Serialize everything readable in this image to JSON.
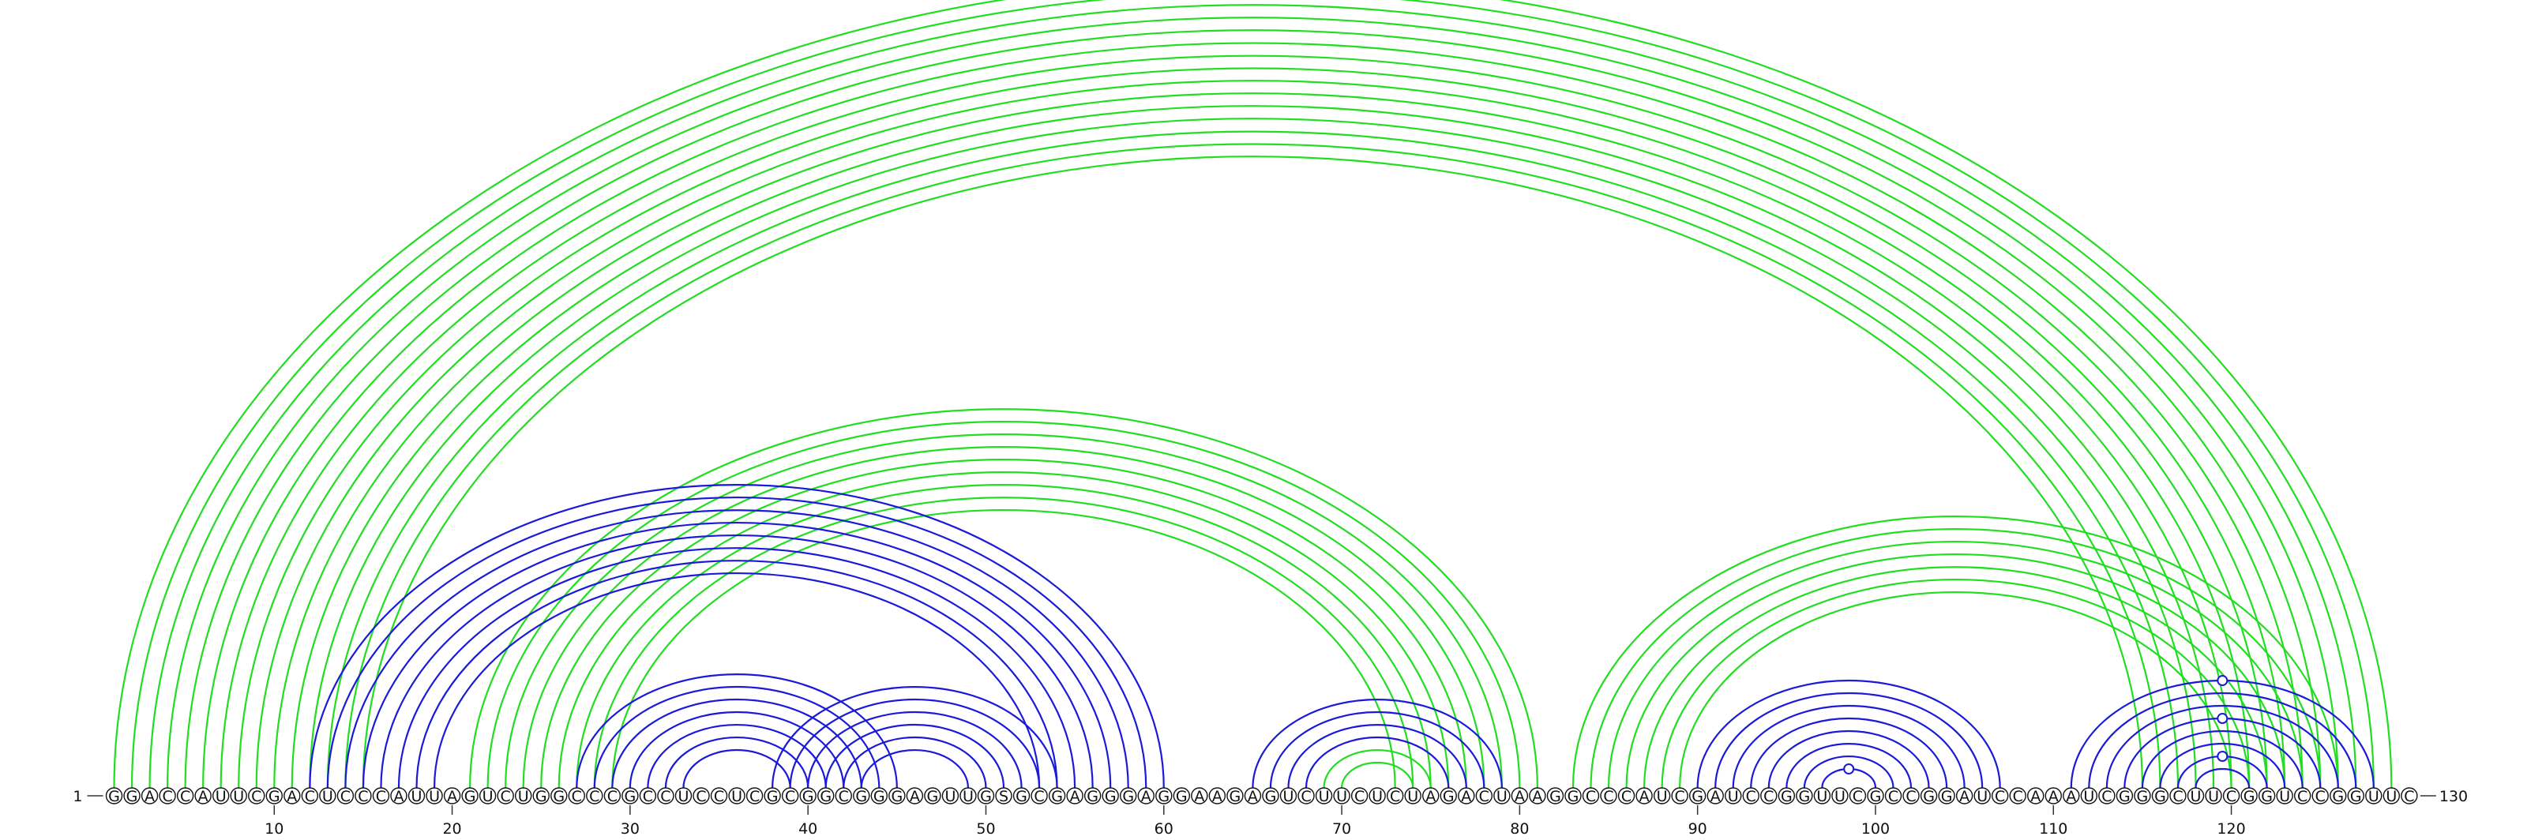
{
  "chart_data": {
    "type": "arc-diagram",
    "sequence": "GGACCAUUCGACUCCCAUUAGUCUGGCCCGCCUCCUCGCGGCGGGAGUUGSGCGAGGGAGGAAGAGUCUUCUCUAGACUAAGGCCCAUCGAUCCGGUUCGCCGGAUCCAAAUCGGGCUUCGGUCCGGUUC",
    "start_label": "1",
    "end_label": "130",
    "ticks": [
      "10",
      "20",
      "30",
      "40",
      "50",
      "60",
      "70",
      "80",
      "90",
      "100",
      "110",
      "120"
    ],
    "colors": {
      "green": "#22dd22",
      "blue": "#1a1ad8"
    },
    "arcs": [
      {
        "color": "green",
        "from": 1,
        "to": 129
      },
      {
        "color": "green",
        "from": 2,
        "to": 128
      },
      {
        "color": "green",
        "from": 3,
        "to": 127
      },
      {
        "color": "green",
        "from": 4,
        "to": 126
      },
      {
        "color": "green",
        "from": 5,
        "to": 125
      },
      {
        "color": "green",
        "from": 6,
        "to": 124
      },
      {
        "color": "green",
        "from": 7,
        "to": 123
      },
      {
        "color": "green",
        "from": 8,
        "to": 122
      },
      {
        "color": "green",
        "from": 9,
        "to": 121
      },
      {
        "color": "green",
        "from": 10,
        "to": 120
      },
      {
        "color": "green",
        "from": 11,
        "to": 119
      },
      {
        "color": "green",
        "from": 12,
        "to": 118
      },
      {
        "color": "green",
        "from": 13,
        "to": 117
      },
      {
        "color": "green",
        "from": 14,
        "to": 116
      },
      {
        "color": "green",
        "from": 15,
        "to": 115
      },
      {
        "color": "green",
        "from": 21,
        "to": 81
      },
      {
        "color": "green",
        "from": 22,
        "to": 80
      },
      {
        "color": "green",
        "from": 23,
        "to": 79
      },
      {
        "color": "green",
        "from": 24,
        "to": 78
      },
      {
        "color": "green",
        "from": 25,
        "to": 77
      },
      {
        "color": "green",
        "from": 26,
        "to": 76
      },
      {
        "color": "green",
        "from": 27,
        "to": 75
      },
      {
        "color": "green",
        "from": 28,
        "to": 74
      },
      {
        "color": "green",
        "from": 29,
        "to": 73
      },
      {
        "color": "green",
        "from": 83,
        "to": 126
      },
      {
        "color": "green",
        "from": 84,
        "to": 125
      },
      {
        "color": "green",
        "from": 85,
        "to": 124
      },
      {
        "color": "green",
        "from": 86,
        "to": 123
      },
      {
        "color": "green",
        "from": 87,
        "to": 122
      },
      {
        "color": "green",
        "from": 88,
        "to": 121
      },
      {
        "color": "green",
        "from": 89,
        "to": 120
      },
      {
        "color": "green",
        "from": 69,
        "to": 75
      },
      {
        "color": "green",
        "from": 70,
        "to": 74
      },
      {
        "color": "blue",
        "from": 12,
        "to": 60
      },
      {
        "color": "blue",
        "from": 13,
        "to": 59
      },
      {
        "color": "blue",
        "from": 14,
        "to": 58
      },
      {
        "color": "blue",
        "from": 15,
        "to": 57
      },
      {
        "color": "blue",
        "from": 16,
        "to": 56
      },
      {
        "color": "blue",
        "from": 17,
        "to": 55
      },
      {
        "color": "blue",
        "from": 18,
        "to": 54
      },
      {
        "color": "blue",
        "from": 19,
        "to": 53
      },
      {
        "color": "blue",
        "from": 27,
        "to": 45
      },
      {
        "color": "blue",
        "from": 28,
        "to": 44
      },
      {
        "color": "blue",
        "from": 29,
        "to": 43
      },
      {
        "color": "blue",
        "from": 30,
        "to": 42
      },
      {
        "color": "blue",
        "from": 31,
        "to": 41
      },
      {
        "color": "blue",
        "from": 32,
        "to": 40
      },
      {
        "color": "blue",
        "from": 33,
        "to": 39
      },
      {
        "color": "blue",
        "from": 38,
        "to": 54
      },
      {
        "color": "blue",
        "from": 39,
        "to": 53
      },
      {
        "color": "blue",
        "from": 40,
        "to": 52
      },
      {
        "color": "blue",
        "from": 41,
        "to": 51
      },
      {
        "color": "blue",
        "from": 42,
        "to": 50
      },
      {
        "color": "blue",
        "from": 43,
        "to": 49
      },
      {
        "color": "blue",
        "from": 65,
        "to": 79
      },
      {
        "color": "blue",
        "from": 66,
        "to": 78
      },
      {
        "color": "blue",
        "from": 67,
        "to": 77
      },
      {
        "color": "blue",
        "from": 68,
        "to": 76
      },
      {
        "color": "blue",
        "from": 90,
        "to": 107
      },
      {
        "color": "blue",
        "from": 91,
        "to": 106
      },
      {
        "color": "blue",
        "from": 92,
        "to": 105
      },
      {
        "color": "blue",
        "from": 93,
        "to": 104
      },
      {
        "color": "blue",
        "from": 94,
        "to": 103
      },
      {
        "color": "blue",
        "from": 95,
        "to": 102
      },
      {
        "color": "blue",
        "from": 96,
        "to": 101
      },
      {
        "color": "blue",
        "from": 97,
        "to": 100
      },
      {
        "color": "blue",
        "from": 111,
        "to": 128
      },
      {
        "color": "blue",
        "from": 112,
        "to": 127
      },
      {
        "color": "blue",
        "from": 113,
        "to": 126
      },
      {
        "color": "blue",
        "from": 114,
        "to": 125
      },
      {
        "color": "blue",
        "from": 115,
        "to": 124
      },
      {
        "color": "blue",
        "from": 116,
        "to": 123
      },
      {
        "color": "blue",
        "from": 117,
        "to": 122
      },
      {
        "color": "blue",
        "from": 118,
        "to": 121
      }
    ],
    "markers": [
      {
        "color": "green",
        "from": 1,
        "to": 129
      },
      {
        "color": "blue",
        "from": 97,
        "to": 100
      },
      {
        "color": "blue",
        "from": 111,
        "to": 128
      },
      {
        "color": "blue",
        "from": 114,
        "to": 125
      },
      {
        "color": "blue",
        "from": 117,
        "to": 122
      }
    ]
  }
}
